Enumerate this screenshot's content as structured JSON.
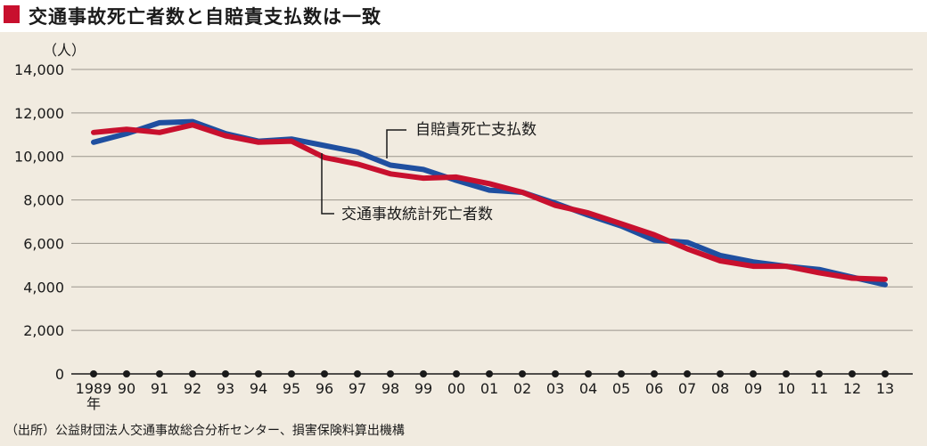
{
  "title": "交通事故死亡者数と自賠責支払数は一致",
  "source": "（出所）公益財団法人交通事故総合分析センター、損害保険料算出機構",
  "colors": {
    "accent": "#c8102e",
    "payments": "#1f4fa0",
    "deaths": "#c8102e",
    "background": "#f1ebe0"
  },
  "chart_data": {
    "type": "line",
    "title": "交通事故死亡者数と自賠責支払数は一致",
    "ylabel": "（人）",
    "xlabel": "年",
    "ylim": [
      0,
      14000
    ],
    "yticks": [
      "0",
      "2,000",
      "4,000",
      "6,000",
      "8,000",
      "10,000",
      "12,000",
      "14,000"
    ],
    "grid": true,
    "categories": [
      "1989",
      "90",
      "91",
      "92",
      "93",
      "94",
      "95",
      "96",
      "97",
      "98",
      "99",
      "00",
      "01",
      "02",
      "03",
      "04",
      "05",
      "06",
      "07",
      "08",
      "09",
      "10",
      "11",
      "12",
      "13"
    ],
    "first_tick_suffix": "年",
    "series": [
      {
        "name": "自賠責死亡支払数",
        "color": "#1f4fa0",
        "values": [
          10650,
          11050,
          11550,
          11600,
          11050,
          10700,
          10800,
          10500,
          10200,
          9600,
          9400,
          8900,
          8450,
          8350,
          7850,
          7300,
          6800,
          6150,
          6050,
          5450,
          5150,
          4950,
          4800,
          4450,
          4100
        ]
      },
      {
        "name": "交通事故統計死亡者数",
        "color": "#c8102e",
        "values": [
          11100,
          11250,
          11100,
          11450,
          10950,
          10650,
          10700,
          9950,
          9650,
          9200,
          9000,
          9050,
          8750,
          8350,
          7750,
          7400,
          6900,
          6400,
          5750,
          5200,
          4950,
          4950,
          4650,
          4400,
          4350
        ]
      }
    ]
  }
}
